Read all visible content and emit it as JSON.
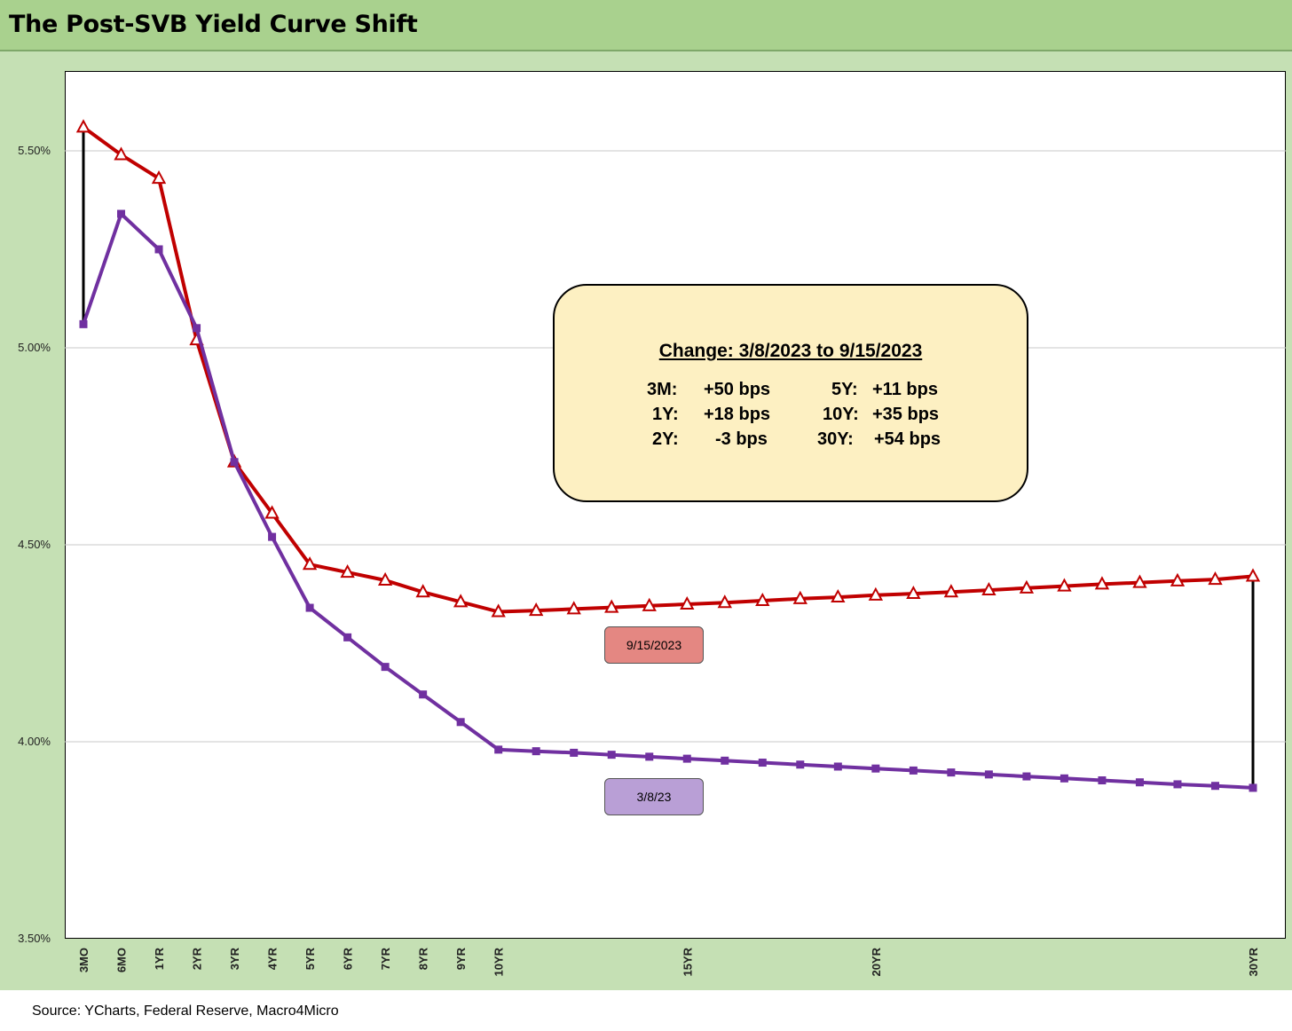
{
  "title": "The Post-SVB Yield Curve Shift",
  "source": "Source: YCharts, Federal Reserve, Macro4Micro",
  "change_box": {
    "title": "Change: 3/8/2023 to 9/15/2023",
    "left": [
      {
        "tenor": "3M:",
        "value": "+50 bps"
      },
      {
        "tenor": "1Y:",
        "value": "+18 bps"
      },
      {
        "tenor": "2Y:",
        "value": "-3 bps"
      }
    ],
    "right": [
      {
        "tenor": "5Y:",
        "value": "+11 bps"
      },
      {
        "tenor": "10Y:",
        "value": "+35 bps"
      },
      {
        "tenor": "30Y:",
        "value": "+54 bps"
      }
    ]
  },
  "colors": {
    "series_red": "#c00000",
    "series_purple": "#7030a0",
    "frame": "#c5e0b4",
    "title_bar": "#a9d18e"
  },
  "chart_data": {
    "type": "line",
    "title": "The Post-SVB Yield Curve Shift",
    "ylim": [
      3.5,
      5.75
    ],
    "yticks": [
      "3.50%",
      "4.00%",
      "4.50%",
      "5.00%",
      "5.50%"
    ],
    "ytick_values": [
      3.5,
      4.0,
      4.5,
      5.0,
      5.5
    ],
    "x": [
      "3MO",
      "6MO",
      "1YR",
      "2YR",
      "3YR",
      "4YR",
      "5YR",
      "6YR",
      "7YR",
      "8YR",
      "9YR",
      "10YR",
      "11YR",
      "12YR",
      "13YR",
      "14YR",
      "15YR",
      "16YR",
      "17YR",
      "18YR",
      "19YR",
      "20YR",
      "21YR",
      "22YR",
      "23YR",
      "24YR",
      "25YR",
      "26YR",
      "27YR",
      "28YR",
      "29YR",
      "30YR"
    ],
    "xtick_labels": [
      "3MO",
      "6MO",
      "1YR",
      "2YR",
      "3YR",
      "4YR",
      "5YR",
      "6YR",
      "7YR",
      "8YR",
      "9YR",
      "10YR",
      "",
      "",
      "",
      "",
      "15YR",
      "",
      "",
      "",
      "",
      "20YR",
      "",
      "",
      "",
      "",
      "",
      "",
      "",
      "",
      "",
      "30YR"
    ],
    "grid": true,
    "series": [
      {
        "name": "9/15/2023",
        "color": "#c00000",
        "marker": "triangle",
        "values": [
          5.56,
          5.49,
          5.43,
          5.02,
          4.71,
          4.58,
          4.45,
          4.43,
          4.41,
          4.38,
          4.355,
          4.33,
          4.333,
          4.337,
          4.341,
          4.345,
          4.349,
          4.353,
          4.358,
          4.363,
          4.367,
          4.372,
          4.376,
          4.38,
          4.385,
          4.39,
          4.395,
          4.4,
          4.404,
          4.408,
          4.412,
          4.42
        ]
      },
      {
        "name": "3/8/23",
        "color": "#7030a0",
        "marker": "square",
        "values": [
          5.06,
          5.34,
          5.25,
          5.05,
          4.71,
          4.52,
          4.34,
          4.265,
          4.19,
          4.12,
          4.05,
          3.98,
          3.976,
          3.972,
          3.967,
          3.962,
          3.957,
          3.952,
          3.947,
          3.942,
          3.937,
          3.932,
          3.927,
          3.922,
          3.917,
          3.912,
          3.907,
          3.902,
          3.897,
          3.892,
          3.888,
          3.883
        ]
      }
    ],
    "change_bars": [
      {
        "tenor": "3MO",
        "from": 5.06,
        "to": 5.56
      },
      {
        "tenor": "30YR",
        "from": 3.883,
        "to": 4.42
      }
    ]
  }
}
